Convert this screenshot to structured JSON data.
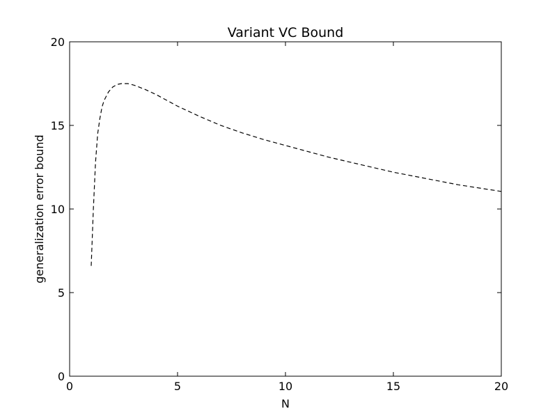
{
  "chart_data": {
    "type": "line",
    "title": "Variant VC Bound",
    "xlabel": "N",
    "ylabel": "generalization error bound",
    "xlim": [
      0,
      20
    ],
    "ylim": [
      0,
      20
    ],
    "xticks": [
      0,
      5,
      10,
      15,
      20
    ],
    "yticks": [
      0,
      5,
      10,
      15,
      20
    ],
    "xtick_labels": [
      "0",
      "5",
      "10",
      "15",
      "20"
    ],
    "ytick_labels": [
      "0",
      "5",
      "10",
      "15",
      "20"
    ],
    "grid": false,
    "legend": "none",
    "series": [
      {
        "line_style": "dashed",
        "color": "#000000",
        "x": [
          1.0,
          1.1,
          1.2,
          1.3,
          1.4,
          1.5,
          1.6,
          1.8,
          2.0,
          2.2,
          2.4,
          2.7,
          3.0,
          3.5,
          4.0,
          4.5,
          5.0,
          6.0,
          7.0,
          8.0,
          9.0,
          10.0,
          11.0,
          12.0,
          13.0,
          14.0,
          15.0,
          16.0,
          17.0,
          18.0,
          19.0,
          20.0
        ],
        "y": [
          6.6,
          10.0,
          12.8,
          14.5,
          15.4,
          16.1,
          16.5,
          17.0,
          17.3,
          17.45,
          17.5,
          17.5,
          17.4,
          17.15,
          16.85,
          16.5,
          16.15,
          15.55,
          15.0,
          14.55,
          14.15,
          13.8,
          13.45,
          13.1,
          12.8,
          12.5,
          12.2,
          11.95,
          11.7,
          11.45,
          11.25,
          11.05
        ]
      }
    ]
  }
}
